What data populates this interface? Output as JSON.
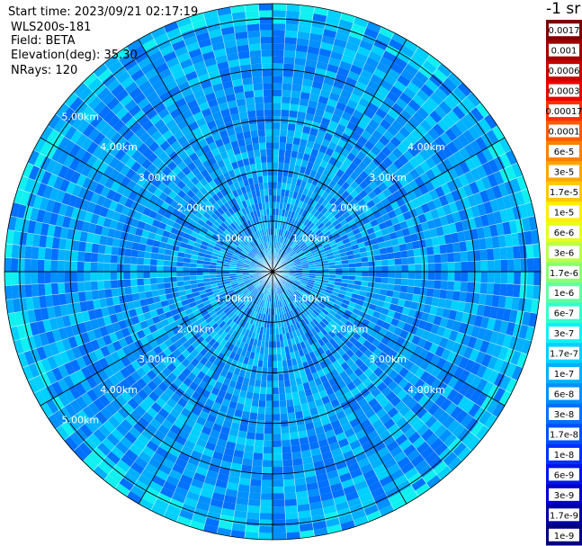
{
  "header": {
    "start_time": "Start time: 2023/09/21 02:17:19",
    "device": "WLS200s-181",
    "field": "Field: BETA",
    "elevation": "Elevation(deg): 35.30",
    "nrays": "NRays: 120"
  },
  "colorbar": {
    "unit_label": "-1 sr",
    "levels": [
      {
        "label": "0.0017",
        "color": "#7f0000"
      },
      {
        "label": "0.001",
        "color": "#a00000"
      },
      {
        "label": "0.0006",
        "color": "#c80000"
      },
      {
        "label": "0.0003",
        "color": "#e80000"
      },
      {
        "label": "0.00017",
        "color": "#ff3000"
      },
      {
        "label": "0.0001",
        "color": "#ff5a00"
      },
      {
        "label": "6e-5",
        "color": "#ff8000"
      },
      {
        "label": "3e-5",
        "color": "#ffa500"
      },
      {
        "label": "1.7e-5",
        "color": "#ffc800"
      },
      {
        "label": "1e-5",
        "color": "#ffee00"
      },
      {
        "label": "6e-6",
        "color": "#e6ff1a"
      },
      {
        "label": "3e-6",
        "color": "#b8ff47"
      },
      {
        "label": "1.7e-6",
        "color": "#8cff73"
      },
      {
        "label": "1e-6",
        "color": "#60ff9f"
      },
      {
        "label": "6e-7",
        "color": "#33ffcc"
      },
      {
        "label": "3e-7",
        "color": "#10f0f0"
      },
      {
        "label": "1.7e-7",
        "color": "#00d0ff"
      },
      {
        "label": "1e-7",
        "color": "#00b0ff"
      },
      {
        "label": "6e-8",
        "color": "#0090ff"
      },
      {
        "label": "3e-8",
        "color": "#0070ff"
      },
      {
        "label": "1.7e-8",
        "color": "#0050ff"
      },
      {
        "label": "1e-8",
        "color": "#0030ff"
      },
      {
        "label": "6e-9",
        "color": "#0014e8"
      },
      {
        "label": "3e-9",
        "color": "#0000c8"
      },
      {
        "label": "1.7e-9",
        "color": "#0000a0"
      },
      {
        "label": "1e-9",
        "color": "#000080"
      }
    ]
  },
  "chart_data": {
    "type": "heatmap",
    "projection": "polar (PPI scan)",
    "field": "BETA",
    "elevation_deg": 35.3,
    "n_rays": 120,
    "range_max_km": 5.3,
    "range_ring_labels": [
      {
        "km": 1,
        "label": "1.00km"
      },
      {
        "km": 2,
        "label": "2.00km"
      },
      {
        "km": 3,
        "label": "3.00km"
      },
      {
        "km": 4,
        "label": "4.00km"
      },
      {
        "km": 5,
        "label": "5.00km"
      }
    ],
    "spoke_angles_deg": [
      0,
      30,
      60,
      90,
      120,
      150,
      180,
      210,
      240,
      270,
      300,
      330
    ],
    "color_scale": "log",
    "value_range": [
      "1e-9",
      "0.0017"
    ],
    "dominant_levels": [
      "3e-8",
      "6e-8",
      "1e-7",
      "1.7e-7",
      "3e-7"
    ]
  }
}
